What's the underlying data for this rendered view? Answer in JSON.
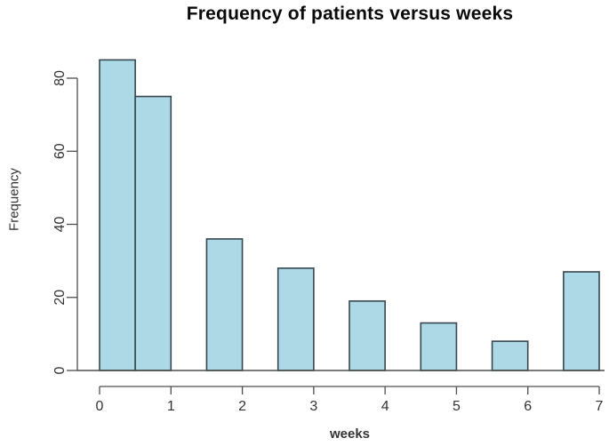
{
  "chart_data": {
    "type": "bar",
    "subtype": "histogram",
    "title": "Frequency of patients versus weeks",
    "xlabel": "weeks",
    "ylabel": "Frequency",
    "xlim": [
      0,
      7
    ],
    "ylim": [
      0,
      85
    ],
    "x_ticks": [
      0,
      1,
      2,
      3,
      4,
      5,
      6,
      7
    ],
    "y_ticks": [
      0,
      20,
      40,
      60,
      80
    ],
    "bin_width": 0.5,
    "grid": false,
    "legend": false,
    "bins": [
      {
        "x0": 0.0,
        "x1": 0.5,
        "count": 85
      },
      {
        "x0": 0.5,
        "x1": 1.0,
        "count": 75
      },
      {
        "x0": 1.0,
        "x1": 1.5,
        "count": 0
      },
      {
        "x0": 1.5,
        "x1": 2.0,
        "count": 36
      },
      {
        "x0": 2.0,
        "x1": 2.5,
        "count": 0
      },
      {
        "x0": 2.5,
        "x1": 3.0,
        "count": 28
      },
      {
        "x0": 3.0,
        "x1": 3.5,
        "count": 0
      },
      {
        "x0": 3.5,
        "x1": 4.0,
        "count": 19
      },
      {
        "x0": 4.0,
        "x1": 4.5,
        "count": 0
      },
      {
        "x0": 4.5,
        "x1": 5.0,
        "count": 13
      },
      {
        "x0": 5.0,
        "x1": 5.5,
        "count": 0
      },
      {
        "x0": 5.5,
        "x1": 6.0,
        "count": 8
      },
      {
        "x0": 6.0,
        "x1": 6.5,
        "count": 0
      },
      {
        "x0": 6.5,
        "x1": 7.0,
        "count": 27
      }
    ],
    "colors": {
      "bar_fill": "#ADD8E6",
      "bar_border": "#37474F",
      "axis": "#4D4D4D",
      "tick_labels": "#333333",
      "title": "#0A0A0A",
      "background": "#FFFFFF"
    }
  }
}
